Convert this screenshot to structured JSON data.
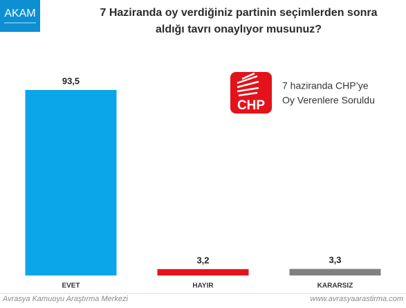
{
  "header": {
    "logo": "AKAM"
  },
  "chart_data": {
    "type": "bar",
    "title": [
      "7 Haziranda oy verdiğiniz partinin seçimlerden sonra",
      "aldığı tavrı onaylıyor musunuz?"
    ],
    "categories": [
      "EVET",
      "HAYIR",
      "KARARSIZ"
    ],
    "values": [
      93.5,
      3.2,
      3.3
    ],
    "value_labels": [
      "93,5",
      "3,2",
      "3,3"
    ],
    "colors": [
      "#0ba6ea",
      "#e3121b",
      "#808080"
    ],
    "annotation": {
      "logo": "CHP",
      "lines": [
        "7 haziranda CHP’ye",
        "Oy Verenlere Soruldu"
      ]
    }
  },
  "footer": {
    "left": "Avrasya Kamuoyu Araştırma Merkezi",
    "right": "www.avrasyaarastirma.com"
  }
}
